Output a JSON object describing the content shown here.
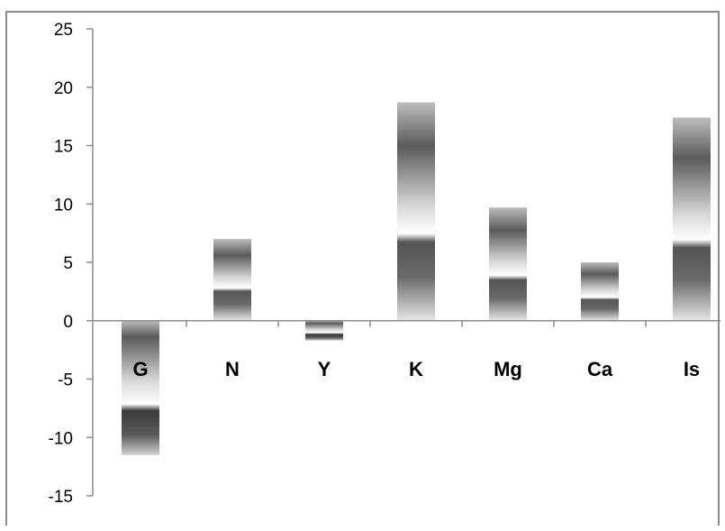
{
  "chart_data": {
    "type": "bar",
    "categories": [
      "G",
      "N",
      "Y",
      "K",
      "Mg",
      "Ca",
      "Is"
    ],
    "values": [
      -11.5,
      7.0,
      -1.7,
      18.7,
      9.7,
      5.0,
      17.4
    ],
    "ylim": [
      -15,
      25
    ],
    "yticks": [
      25,
      20,
      15,
      10,
      5,
      0,
      -5,
      -10,
      -15
    ],
    "grid": false,
    "legend": "none",
    "bar_fill": "gray gradient",
    "colors": {
      "bar_dark": "#4a4a4a",
      "bar_mid": "#9a9a9a",
      "bar_light": "#ffffff",
      "axis": "#8c8c8c"
    }
  }
}
